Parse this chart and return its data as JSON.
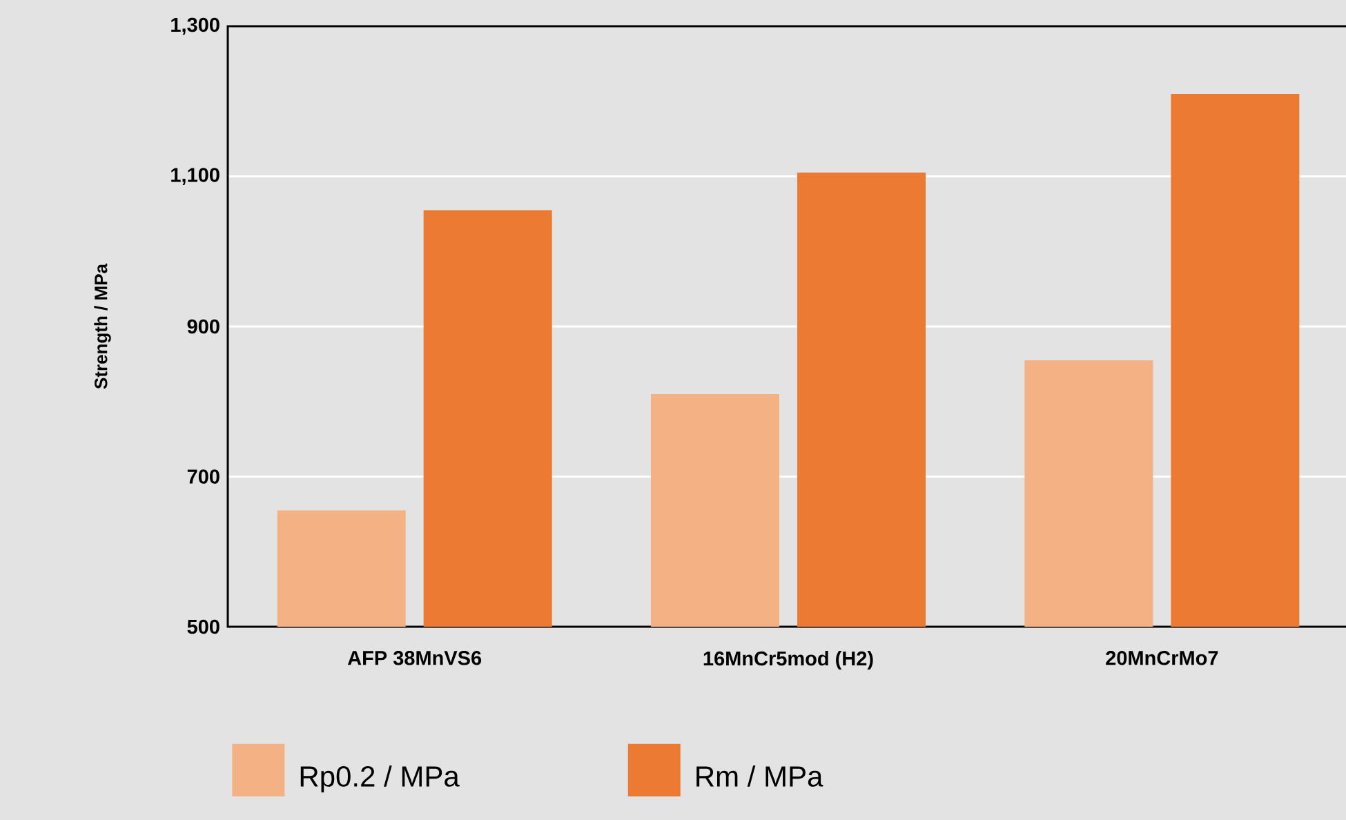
{
  "chart_data": {
    "type": "bar",
    "ylabel": "Strength / MPa",
    "categories": [
      "AFP 38MnVS6",
      "16MnCr5mod (H2)",
      "20MnCrMo7"
    ],
    "series": [
      {
        "name": "Rp0.2 / MPa",
        "color": "#f4b183",
        "values": [
          655,
          810,
          855
        ]
      },
      {
        "name": "Rm / MPa",
        "color": "#ec7a33",
        "values": [
          1055,
          1105,
          1210
        ]
      }
    ],
    "ylim": [
      500,
      1300
    ],
    "yticks": [
      500,
      700,
      900,
      {
        "value": 1100,
        "label": "1,100"
      },
      {
        "value": 1300,
        "label": "1,300"
      }
    ],
    "grid": "y",
    "legend": "bottom"
  }
}
